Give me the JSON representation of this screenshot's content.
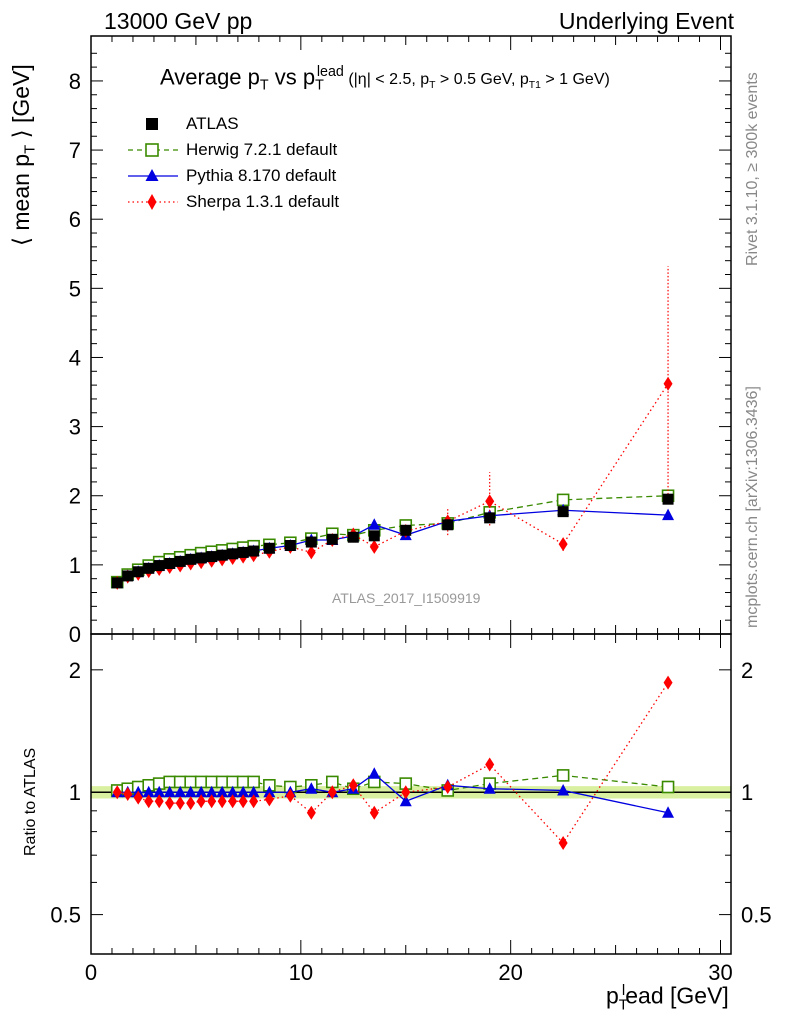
{
  "header": {
    "left": "13000 GeV pp",
    "right": "Underlying Event"
  },
  "side_notes": {
    "rivet": "Rivet 3.1.10, ≥ 300k events",
    "mcplots": "mcplots.cern.ch [arXiv:1306.3436]"
  },
  "watermark": "ATLAS_2017_I1509919",
  "colors": {
    "atlas": "#000000",
    "herwig": "#3a8a00",
    "pythia": "#0000e0",
    "sherpa": "#ff0000",
    "band": "#d8f0a0"
  },
  "chart_data": [
    {
      "type": "scatter",
      "panel": "main",
      "title": "Average pT vs pTlead (|η| < 2.5, pT > 0.5 GeV, pT1 > 1 GeV)",
      "title_parts": {
        "main": "Average p",
        "sub1": "T",
        "vs": " vs p",
        "sub2": "T",
        "sup2": "lead",
        "cuts": " (|η| < 2.5, p",
        "sub3": "T",
        "cuts2": " > 0.5 GeV, p",
        "sub4": "T1",
        "cuts3": " > 1 GeV)"
      },
      "ylabel": "⟨ mean pT ⟩ [GeV]",
      "ylabel_parts": {
        "pre": "⟨ mean p",
        "sub": "T",
        "post": " ⟩ [GeV]"
      },
      "xlabel": "pTlead [GeV]",
      "xlabel_parts": {
        "pre": "p",
        "sub": "T",
        "sup": "l",
        "post": "ead [GeV]"
      },
      "xlim": [
        0,
        30.5
      ],
      "ylim": [
        0,
        8.65
      ],
      "yticks": [
        0,
        1,
        2,
        3,
        4,
        5,
        6,
        7,
        8
      ],
      "legend_position": "top-left",
      "x": [
        1.25,
        1.75,
        2.25,
        2.75,
        3.25,
        3.75,
        4.25,
        4.75,
        5.25,
        5.75,
        6.25,
        6.75,
        7.25,
        7.75,
        8.5,
        9.5,
        10.5,
        11.5,
        12.5,
        13.5,
        15,
        17,
        19,
        22.5,
        27.5
      ],
      "series": [
        {
          "name": "ATLAS",
          "marker": "square-filled",
          "values": [
            0.74,
            0.84,
            0.9,
            0.95,
            0.99,
            1.02,
            1.05,
            1.08,
            1.1,
            1.12,
            1.14,
            1.16,
            1.18,
            1.2,
            1.24,
            1.28,
            1.33,
            1.37,
            1.4,
            1.42,
            1.5,
            1.58,
            1.68,
            1.77,
            1.95
          ]
        },
        {
          "name": "Herwig 7.2.1 default",
          "marker": "square-open",
          "line": "dashed",
          "values": [
            0.75,
            0.86,
            0.93,
            0.99,
            1.04,
            1.08,
            1.11,
            1.14,
            1.17,
            1.19,
            1.21,
            1.23,
            1.25,
            1.27,
            1.29,
            1.32,
            1.38,
            1.45,
            1.43,
            1.5,
            1.57,
            1.6,
            1.76,
            1.94,
            2.0
          ]
        },
        {
          "name": "Pythia 8.170 default",
          "marker": "triangle-filled",
          "line": "solid",
          "values": [
            0.74,
            0.84,
            0.9,
            0.95,
            0.99,
            1.02,
            1.05,
            1.08,
            1.1,
            1.12,
            1.14,
            1.16,
            1.18,
            1.2,
            1.24,
            1.28,
            1.36,
            1.36,
            1.42,
            1.58,
            1.43,
            1.63,
            1.71,
            1.79,
            1.72
          ]
        },
        {
          "name": "Sherpa 1.3.1 default",
          "marker": "diamond-filled",
          "line": "dotted",
          "values": [
            0.74,
            0.83,
            0.87,
            0.91,
            0.94,
            0.97,
            0.99,
            1.02,
            1.04,
            1.06,
            1.08,
            1.1,
            1.12,
            1.14,
            1.19,
            1.26,
            1.18,
            1.36,
            1.44,
            1.26,
            1.49,
            1.63,
            1.92,
            1.3,
            3.62
          ],
          "err_low": [
            0,
            0,
            0,
            0,
            0,
            0,
            0,
            0,
            0,
            0,
            0,
            0,
            0,
            0,
            0,
            0,
            0.04,
            0,
            0,
            0.06,
            0,
            0.2,
            0.35,
            0.1,
            1.6
          ],
          "err_high": [
            0,
            0,
            0,
            0,
            0,
            0,
            0,
            0,
            0,
            0,
            0,
            0,
            0,
            0,
            0,
            0,
            0.04,
            0,
            0,
            0.06,
            0,
            0.2,
            0.42,
            0.1,
            1.7
          ]
        }
      ]
    },
    {
      "type": "scatter",
      "panel": "ratio",
      "ylabel": "Ratio to ATLAS",
      "xlim": [
        0,
        30.5
      ],
      "ylim": [
        0.4,
        2.45
      ],
      "log_y": true,
      "yticks": [
        0.5,
        1,
        2
      ],
      "yticklabels": [
        "0.5",
        "1",
        "2"
      ],
      "xticks": [
        0,
        10,
        20,
        30
      ],
      "x": [
        1.25,
        1.75,
        2.25,
        2.75,
        3.25,
        3.75,
        4.25,
        4.75,
        5.25,
        5.75,
        6.25,
        6.75,
        7.25,
        7.75,
        8.5,
        9.5,
        10.5,
        11.5,
        12.5,
        13.5,
        15,
        17,
        19,
        22.5,
        27.5
      ],
      "series": [
        {
          "name": "Herwig 7.2.1 default",
          "values": [
            1.01,
            1.02,
            1.03,
            1.04,
            1.05,
            1.06,
            1.06,
            1.06,
            1.06,
            1.06,
            1.06,
            1.06,
            1.06,
            1.06,
            1.04,
            1.03,
            1.04,
            1.06,
            1.02,
            1.06,
            1.05,
            1.01,
            1.05,
            1.1,
            1.03
          ]
        },
        {
          "name": "Pythia 8.170 default",
          "values": [
            1.0,
            1.0,
            1.0,
            1.0,
            1.0,
            1.0,
            1.0,
            1.0,
            1.0,
            1.0,
            1.0,
            1.0,
            1.0,
            1.0,
            1.0,
            1.0,
            1.02,
            1.0,
            1.02,
            1.11,
            0.95,
            1.04,
            1.02,
            1.01,
            0.89
          ]
        },
        {
          "name": "Sherpa 1.3.1 default",
          "values": [
            1.0,
            0.99,
            0.97,
            0.95,
            0.95,
            0.94,
            0.94,
            0.94,
            0.95,
            0.95,
            0.95,
            0.95,
            0.95,
            0.95,
            0.96,
            0.98,
            0.89,
            1.0,
            1.04,
            0.89,
            1.0,
            1.03,
            1.17,
            0.75,
            1.86
          ]
        }
      ]
    }
  ]
}
